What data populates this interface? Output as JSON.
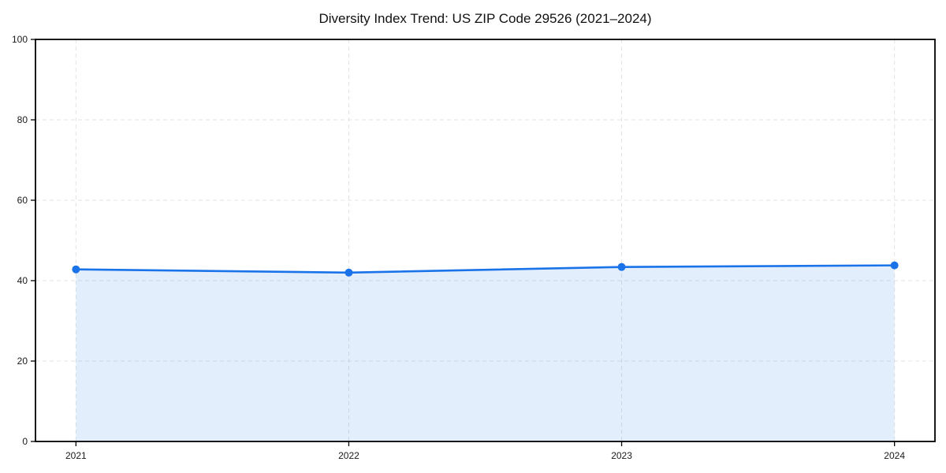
{
  "figure": {
    "background_color": "#ffffff"
  },
  "chart_data": {
    "type": "area",
    "title": "Diversity Index Trend: US ZIP Code 29526 (2021–2024)",
    "x": [
      "2021",
      "2022",
      "2023",
      "2024"
    ],
    "series": [
      {
        "name": "Diversity Index",
        "values": [
          42.8,
          42.0,
          43.4,
          43.8
        ]
      }
    ],
    "xlabel": "",
    "ylabel": "",
    "ylim": [
      0,
      100
    ],
    "yticks": [
      0,
      20,
      40,
      60,
      80,
      100
    ],
    "xticks": [
      "2021",
      "2022",
      "2023",
      "2024"
    ],
    "grid": true,
    "grid_style": "dashed",
    "legend_position": "none",
    "line_color": "#1a73e8",
    "fill_color": "rgba(26,115,232,0.12)",
    "marker_color": "#1a73e8",
    "grid_color": "#e3e3e3",
    "spine_color": "#000000",
    "tick_label_color": "#1a1a1a"
  }
}
